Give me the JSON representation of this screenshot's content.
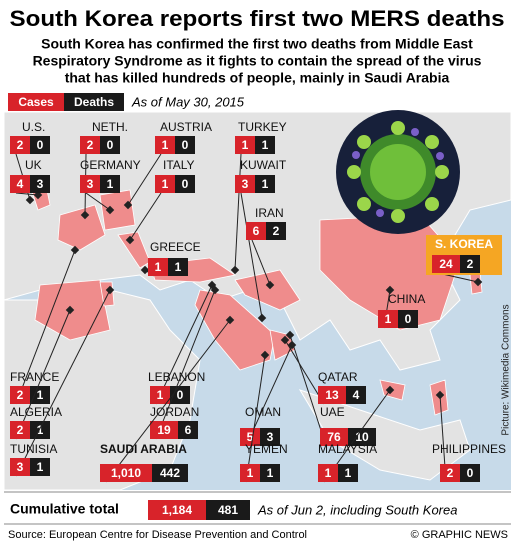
{
  "header": {
    "title": "South Korea reports first two MERS deaths",
    "subtitle_lines": [
      "South Korea has confirmed the first two deaths from Middle East",
      "Respiratory Syndrome as it fights to contain the spread of the virus",
      "that has killed hundreds of people, mainly in Saudi Arabia"
    ]
  },
  "legend": {
    "cases": "Cases",
    "deaths": "Deaths",
    "date": "As of May 30, 2015"
  },
  "countries": [
    {
      "name": "U.S.",
      "cases": 2,
      "deaths": 0
    },
    {
      "name": "NETH.",
      "cases": 2,
      "deaths": 0
    },
    {
      "name": "AUSTRIA",
      "cases": 1,
      "deaths": 0
    },
    {
      "name": "TURKEY",
      "cases": 1,
      "deaths": 1
    },
    {
      "name": "UK",
      "cases": 4,
      "deaths": 3
    },
    {
      "name": "GERMANY",
      "cases": 3,
      "deaths": 1
    },
    {
      "name": "ITALY",
      "cases": 1,
      "deaths": 0
    },
    {
      "name": "KUWAIT",
      "cases": 3,
      "deaths": 1
    },
    {
      "name": "IRAN",
      "cases": 6,
      "deaths": 2
    },
    {
      "name": "GREECE",
      "cases": 1,
      "deaths": 1
    },
    {
      "name": "S. KOREA",
      "cases": 24,
      "deaths": 2
    },
    {
      "name": "CHINA",
      "cases": 1,
      "deaths": 0
    },
    {
      "name": "FRANCE",
      "cases": 2,
      "deaths": 1
    },
    {
      "name": "LEBANON",
      "cases": 1,
      "deaths": 0
    },
    {
      "name": "QATAR",
      "cases": 13,
      "deaths": 4
    },
    {
      "name": "ALGERIA",
      "cases": 2,
      "deaths": 1
    },
    {
      "name": "JORDAN",
      "cases": 19,
      "deaths": 6
    },
    {
      "name": "OMAN",
      "cases": 5,
      "deaths": 3
    },
    {
      "name": "UAE",
      "cases": 76,
      "deaths": 10
    },
    {
      "name": "TUNISIA",
      "cases": 3,
      "deaths": 1
    },
    {
      "name": "SAUDI ARABIA",
      "cases": "1,010",
      "deaths": 442
    },
    {
      "name": "YEMEN",
      "cases": 1,
      "deaths": 1
    },
    {
      "name": "MALAYSIA",
      "cases": 1,
      "deaths": 1
    },
    {
      "name": "PHILIPPINES",
      "cases": 2,
      "deaths": 0
    }
  ],
  "picture_credit": "Picture: Wikimedia Commons",
  "total": {
    "label": "Cumulative total",
    "cases": "1,184",
    "deaths": 481,
    "note": "As of Jun 2, including South Korea"
  },
  "footer": {
    "source": "Source: European Centre for Disease Prevention and Control",
    "credit": "© GRAPHIC NEWS"
  }
}
